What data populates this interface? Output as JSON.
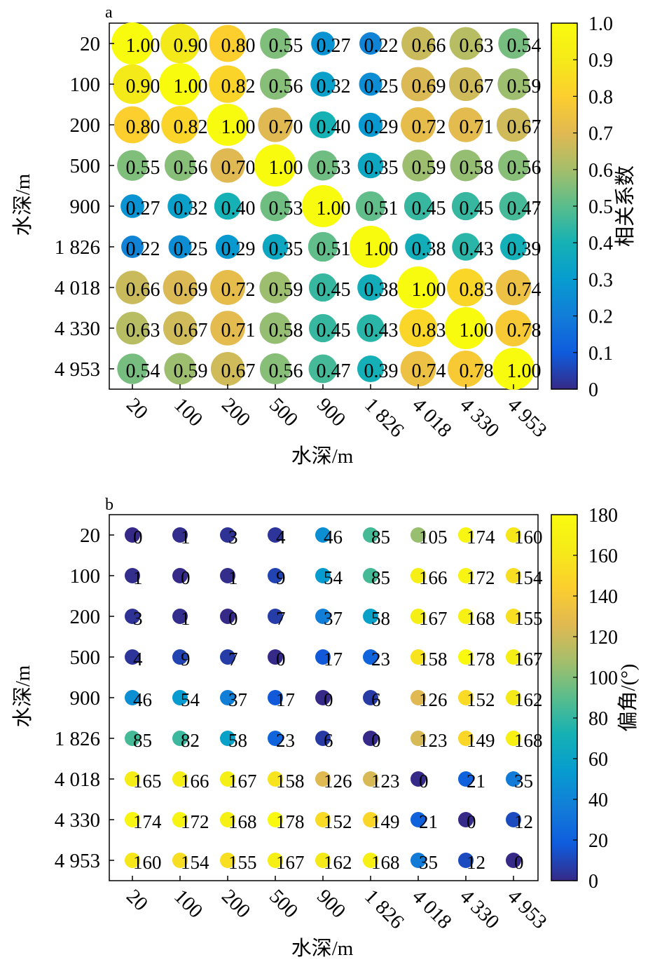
{
  "chart_data": [
    {
      "type": "heatmap",
      "panel_label": "a",
      "categories": [
        "20",
        "100",
        "200",
        "500",
        "900",
        "1 826",
        "4 018",
        "4 330",
        "4 953"
      ],
      "xlabel": "水深/m",
      "ylabel": "水深/m",
      "colorbar_label": "相关系数",
      "colorbar_range": [
        0,
        1.0
      ],
      "colorbar_ticks": [
        "0",
        "0.1",
        "0.2",
        "0.3",
        "0.4",
        "0.5",
        "0.6",
        "0.7",
        "0.8",
        "0.9",
        "1.0"
      ],
      "colormap": "parula",
      "values": [
        [
          1.0,
          0.9,
          0.8,
          0.55,
          0.27,
          0.22,
          0.66,
          0.63,
          0.54
        ],
        [
          0.9,
          1.0,
          0.82,
          0.56,
          0.32,
          0.25,
          0.69,
          0.67,
          0.59
        ],
        [
          0.8,
          0.82,
          1.0,
          0.7,
          0.4,
          0.29,
          0.72,
          0.71,
          0.67
        ],
        [
          0.55,
          0.56,
          0.7,
          1.0,
          0.53,
          0.35,
          0.59,
          0.58,
          0.56
        ],
        [
          0.27,
          0.32,
          0.4,
          0.53,
          1.0,
          0.51,
          0.45,
          0.45,
          0.47
        ],
        [
          0.22,
          0.25,
          0.29,
          0.35,
          0.51,
          1.0,
          0.38,
          0.43,
          0.39
        ],
        [
          0.66,
          0.69,
          0.72,
          0.59,
          0.45,
          0.38,
          1.0,
          0.83,
          0.74
        ],
        [
          0.63,
          0.67,
          0.71,
          0.58,
          0.45,
          0.43,
          0.83,
          1.0,
          0.78
        ],
        [
          0.54,
          0.59,
          0.67,
          0.56,
          0.47,
          0.39,
          0.74,
          0.78,
          1.0
        ]
      ],
      "labels": [
        [
          "1.00",
          "0.90",
          "0.80",
          "0.55",
          "0.27",
          "0.22",
          "0.66",
          "0.63",
          "0.54"
        ],
        [
          "0.90",
          "1.00",
          "0.82",
          "0.56",
          "0.32",
          "0.25",
          "0.69",
          "0.67",
          "0.59"
        ],
        [
          "0.80",
          "0.82",
          "1.00",
          "0.70",
          "0.40",
          "0.29",
          "0.72",
          "0.71",
          "0.67"
        ],
        [
          "0.55",
          "0.56",
          "0.70",
          "1.00",
          "0.53",
          "0.35",
          "0.59",
          "0.58",
          "0.56"
        ],
        [
          "0.27",
          "0.32",
          "0.40",
          "0.53",
          "1.00",
          "0.51",
          "0.45",
          "0.45",
          "0.47"
        ],
        [
          "0.22",
          "0.25",
          "0.29",
          "0.35",
          "0.51",
          "1.00",
          "0.38",
          "0.43",
          "0.39"
        ],
        [
          "0.66",
          "0.69",
          "0.72",
          "0.59",
          "0.45",
          "0.38",
          "1.00",
          "0.83",
          "0.74"
        ],
        [
          "0.63",
          "0.67",
          "0.71",
          "0.58",
          "0.45",
          "0.43",
          "0.83",
          "1.00",
          "0.78"
        ],
        [
          "0.54",
          "0.59",
          "0.67",
          "0.56",
          "0.47",
          "0.39",
          "0.74",
          "0.78",
          "1.00"
        ]
      ],
      "marker_size_scales_with_value": true
    },
    {
      "type": "heatmap",
      "panel_label": "b",
      "categories": [
        "20",
        "100",
        "200",
        "500",
        "900",
        "1 826",
        "4 018",
        "4 330",
        "4 953"
      ],
      "xlabel": "水深/m",
      "ylabel": "水深/m",
      "colorbar_label": "偏角/(°)",
      "colorbar_range": [
        0,
        180
      ],
      "colorbar_ticks": [
        "0",
        "20",
        "40",
        "60",
        "80",
        "100",
        "120",
        "140",
        "160",
        "180"
      ],
      "colormap": "parula",
      "values": [
        [
          0,
          1,
          3,
          4,
          46,
          85,
          105,
          174,
          160
        ],
        [
          1,
          0,
          1,
          9,
          54,
          85,
          166,
          172,
          154
        ],
        [
          3,
          1,
          0,
          7,
          37,
          58,
          167,
          168,
          155
        ],
        [
          4,
          9,
          7,
          0,
          17,
          23,
          158,
          178,
          167
        ],
        [
          46,
          54,
          37,
          17,
          0,
          6,
          126,
          152,
          162
        ],
        [
          85,
          82,
          58,
          23,
          6,
          0,
          123,
          149,
          168
        ],
        [
          165,
          166,
          167,
          158,
          126,
          123,
          0,
          21,
          35
        ],
        [
          174,
          172,
          168,
          178,
          152,
          149,
          21,
          0,
          12
        ],
        [
          160,
          154,
          155,
          167,
          162,
          168,
          35,
          12,
          0
        ]
      ],
      "labels": [
        [
          "0",
          "1",
          "3",
          "4",
          "46",
          "85",
          "105",
          "174",
          "160"
        ],
        [
          "1",
          "0",
          "1",
          "9",
          "54",
          "85",
          "166",
          "172",
          "154"
        ],
        [
          "3",
          "1",
          "0",
          "7",
          "37",
          "58",
          "167",
          "168",
          "155"
        ],
        [
          "4",
          "9",
          "7",
          "0",
          "17",
          "23",
          "158",
          "178",
          "167"
        ],
        [
          "46",
          "54",
          "37",
          "17",
          "0",
          "6",
          "126",
          "152",
          "162"
        ],
        [
          "85",
          "82",
          "58",
          "23",
          "6",
          "0",
          "123",
          "149",
          "168"
        ],
        [
          "165",
          "166",
          "167",
          "158",
          "126",
          "123",
          "0",
          "21",
          "35"
        ],
        [
          "174",
          "172",
          "168",
          "178",
          "152",
          "149",
          "21",
          "0",
          "12"
        ],
        [
          "160",
          "154",
          "155",
          "167",
          "162",
          "168",
          "35",
          "12",
          "0"
        ]
      ],
      "marker_size_scales_with_value": false
    }
  ]
}
